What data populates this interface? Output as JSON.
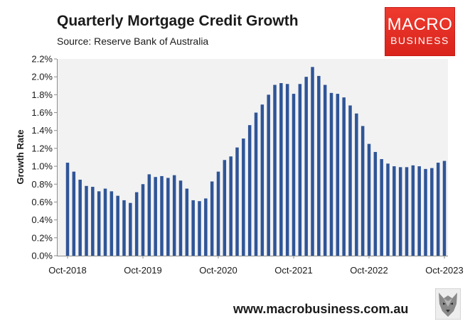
{
  "chart_data": {
    "type": "bar",
    "title": "Quarterly Mortgage Credit Growth",
    "subtitle": "Source: Reserve Bank of Australia",
    "ylabel": "Growth Rate",
    "xlabel": "",
    "ylim": [
      0,
      2.2
    ],
    "y_ticks": [
      "0.0%",
      "0.2%",
      "0.4%",
      "0.6%",
      "0.8%",
      "1.0%",
      "1.2%",
      "1.4%",
      "1.6%",
      "1.8%",
      "2.0%",
      "2.2%"
    ],
    "x_tick_labels": [
      "Oct-2018",
      "Oct-2019",
      "Oct-2020",
      "Oct-2021",
      "Oct-2022",
      "Oct-2023"
    ],
    "bar_color": "#2f5597",
    "plot_background": "#f2f2f2",
    "grid": false,
    "legend": "none",
    "x": [
      "Oct-2018",
      "Nov-2018",
      "Dec-2018",
      "Jan-2019",
      "Feb-2019",
      "Mar-2019",
      "Apr-2019",
      "May-2019",
      "Jun-2019",
      "Jul-2019",
      "Aug-2019",
      "Sep-2019",
      "Oct-2019",
      "Nov-2019",
      "Dec-2019",
      "Jan-2020",
      "Feb-2020",
      "Mar-2020",
      "Apr-2020",
      "May-2020",
      "Jun-2020",
      "Jul-2020",
      "Aug-2020",
      "Sep-2020",
      "Oct-2020",
      "Nov-2020",
      "Dec-2020",
      "Jan-2021",
      "Feb-2021",
      "Mar-2021",
      "Apr-2021",
      "May-2021",
      "Jun-2021",
      "Jul-2021",
      "Aug-2021",
      "Sep-2021",
      "Oct-2021",
      "Nov-2021",
      "Dec-2021",
      "Jan-2022",
      "Feb-2022",
      "Mar-2022",
      "Apr-2022",
      "May-2022",
      "Jun-2022",
      "Jul-2022",
      "Aug-2022",
      "Sep-2022",
      "Oct-2022",
      "Nov-2022",
      "Dec-2022",
      "Jan-2023",
      "Feb-2023",
      "Mar-2023",
      "Apr-2023",
      "May-2023",
      "Jun-2023",
      "Jul-2023",
      "Aug-2023",
      "Sep-2023",
      "Oct-2023"
    ],
    "values": [
      1.04,
      0.94,
      0.85,
      0.78,
      0.77,
      0.72,
      0.75,
      0.72,
      0.67,
      0.62,
      0.59,
      0.71,
      0.8,
      0.91,
      0.88,
      0.89,
      0.87,
      0.9,
      0.84,
      0.75,
      0.62,
      0.61,
      0.64,
      0.83,
      0.94,
      1.07,
      1.11,
      1.21,
      1.31,
      1.46,
      1.6,
      1.69,
      1.8,
      1.91,
      1.93,
      1.92,
      1.81,
      1.92,
      2.0,
      2.11,
      2.01,
      1.91,
      1.82,
      1.81,
      1.77,
      1.68,
      1.59,
      1.45,
      1.25,
      1.16,
      1.08,
      1.03,
      1.0,
      0.99,
      0.99,
      1.01,
      1.0,
      0.97,
      0.98,
      1.04,
      1.06
    ]
  },
  "logo": {
    "line1": "MACRO",
    "line2": "BUSINESS"
  },
  "footer": {
    "website": "www.macrobusiness.com.au",
    "icon": "wolf-icon"
  }
}
